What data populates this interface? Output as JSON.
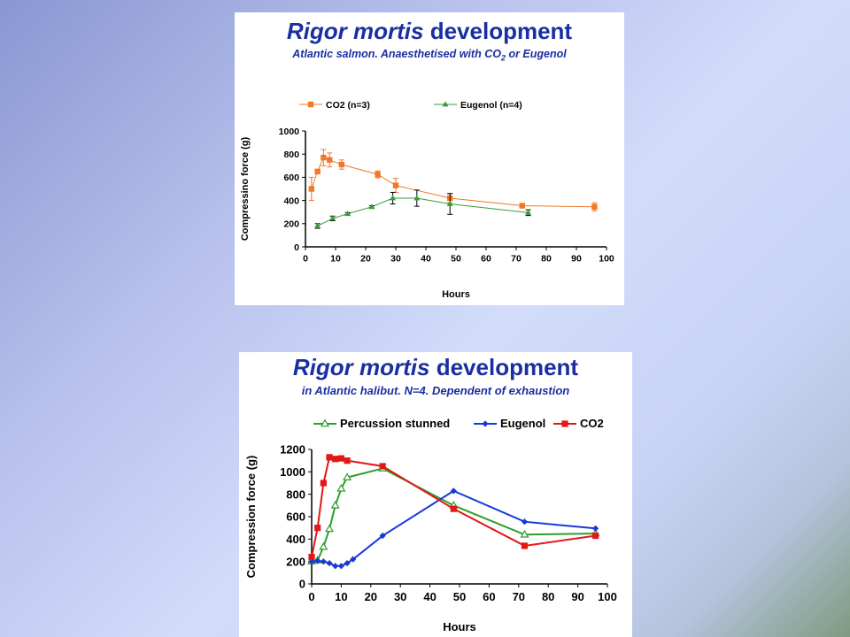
{
  "colors": {
    "co2_salmon": "#f07828",
    "eugenol_salmon": "#3a9a3a",
    "percussion": "#2e9e2e",
    "eugenol_halibut": "#1838d8",
    "co2_halibut": "#e21818",
    "title": "#1a2fa0"
  },
  "chart_data": [
    {
      "type": "line",
      "title_italic": "Rigor mortis",
      "title_rest": " development",
      "subtitle_main": "Atlantic salmon. Anaesthetised with CO",
      "subtitle_sub": "2",
      "subtitle_end": " or Eugenol",
      "xlabel": "Hours",
      "ylabel": "Compressino force (g)",
      "xlim": [
        0,
        100
      ],
      "ylim": [
        0,
        1000
      ],
      "xticks": [
        "0",
        "10",
        "20",
        "30",
        "40",
        "50",
        "60",
        "70",
        "80",
        "90",
        "100"
      ],
      "yticks": [
        "0",
        "200",
        "400",
        "600",
        "800",
        "1000"
      ],
      "legend_position": "top",
      "grid": false,
      "series": [
        {
          "name": "CO2 (n=3)",
          "marker": "square",
          "x": [
            2,
            4,
            6,
            8,
            12,
            24,
            30,
            48,
            72,
            96
          ],
          "y": [
            500,
            650,
            770,
            750,
            710,
            625,
            530,
            420,
            355,
            345
          ],
          "err": [
            100,
            10,
            70,
            60,
            40,
            30,
            60,
            40,
            10,
            35
          ]
        },
        {
          "name": "Eugenol (n=4)",
          "marker": "triangle",
          "x": [
            4,
            9,
            14,
            22,
            29,
            37,
            48,
            74
          ],
          "y": [
            180,
            245,
            285,
            345,
            420,
            420,
            370,
            295
          ],
          "err": [
            20,
            20,
            10,
            10,
            50,
            70,
            90,
            25
          ]
        }
      ]
    },
    {
      "type": "line",
      "title_italic": "Rigor mortis",
      "title_rest": " development",
      "subtitle": "in Atlantic halibut. N=4. Dependent of exhaustion",
      "xlabel": "Hours",
      "ylabel": "Compression force (g)",
      "xlim": [
        0,
        100
      ],
      "ylim": [
        0,
        1200
      ],
      "xticks": [
        "0",
        "10",
        "20",
        "30",
        "40",
        "50",
        "60",
        "70",
        "80",
        "90",
        "100"
      ],
      "yticks": [
        "0",
        "200",
        "400",
        "600",
        "800",
        "1000",
        "1200"
      ],
      "legend_position": "top",
      "grid": false,
      "series": [
        {
          "name": "Percussion stunned",
          "marker": "triangle-open",
          "x": [
            0,
            2,
            4,
            6,
            8,
            10,
            12,
            24,
            48,
            72,
            96
          ],
          "y": [
            200,
            210,
            330,
            490,
            700,
            850,
            950,
            1030,
            700,
            440,
            450
          ]
        },
        {
          "name": "Eugenol",
          "marker": "diamond",
          "x": [
            0,
            2,
            4,
            6,
            8,
            10,
            12,
            14,
            24,
            48,
            72,
            96
          ],
          "y": [
            200,
            205,
            200,
            185,
            160,
            160,
            185,
            220,
            430,
            830,
            555,
            495
          ]
        },
        {
          "name": "CO2",
          "marker": "square",
          "x": [
            0,
            2,
            4,
            6,
            8,
            10,
            12,
            24,
            48,
            72,
            96
          ],
          "y": [
            240,
            500,
            900,
            1130,
            1115,
            1120,
            1100,
            1050,
            670,
            340,
            430
          ]
        }
      ]
    }
  ]
}
